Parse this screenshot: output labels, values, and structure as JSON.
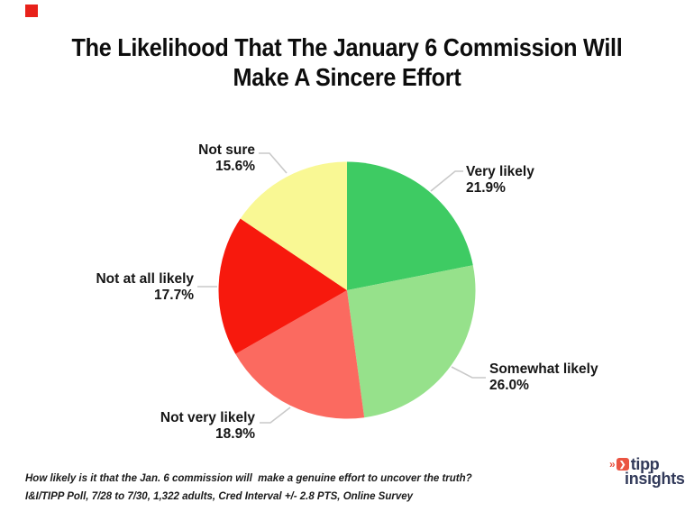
{
  "title": {
    "line1": "The Likelihood That The January 6 Commission Will",
    "line2": "Make A Sincere Effort"
  },
  "corner_mark": {
    "color": "#e8211a"
  },
  "chart_data": {
    "type": "pie",
    "title": "The Likelihood That The January 6 Commission Will Make A Sincere Effort",
    "start_angle_deg": 0,
    "direction": "clockwise",
    "legend_position": "outside-callouts",
    "slices": [
      {
        "label": "Very likely",
        "value": 21.9,
        "pct_label": "21.9%",
        "color": "#3ecb63"
      },
      {
        "label": "Somewhat likely",
        "value": 26.0,
        "pct_label": "26.0%",
        "color": "#96e18b"
      },
      {
        "label": "Not very likely",
        "value": 18.9,
        "pct_label": "18.9%",
        "color": "#fb6a60"
      },
      {
        "label": "Not at all likely",
        "value": 17.7,
        "pct_label": "17.7%",
        "color": "#f7190d"
      },
      {
        "label": "Not sure",
        "value": 15.6,
        "pct_label": "15.6%",
        "color": "#f9f894"
      }
    ],
    "leader_line_color": "#c9c9c9"
  },
  "footnote": {
    "line1": "How likely is it that the Jan. 6 commission will  make a genuine effort to uncover the truth?",
    "line2": "I&I/TIPP Poll, 7/28 to 7/30, 1,322 adults, Cred Interval +/- 2.8 PTS, Online Survey"
  },
  "logo": {
    "word1": "tipp",
    "word2": "insights",
    "text_color": "#323a5a",
    "icon_color": "#ea5442"
  }
}
